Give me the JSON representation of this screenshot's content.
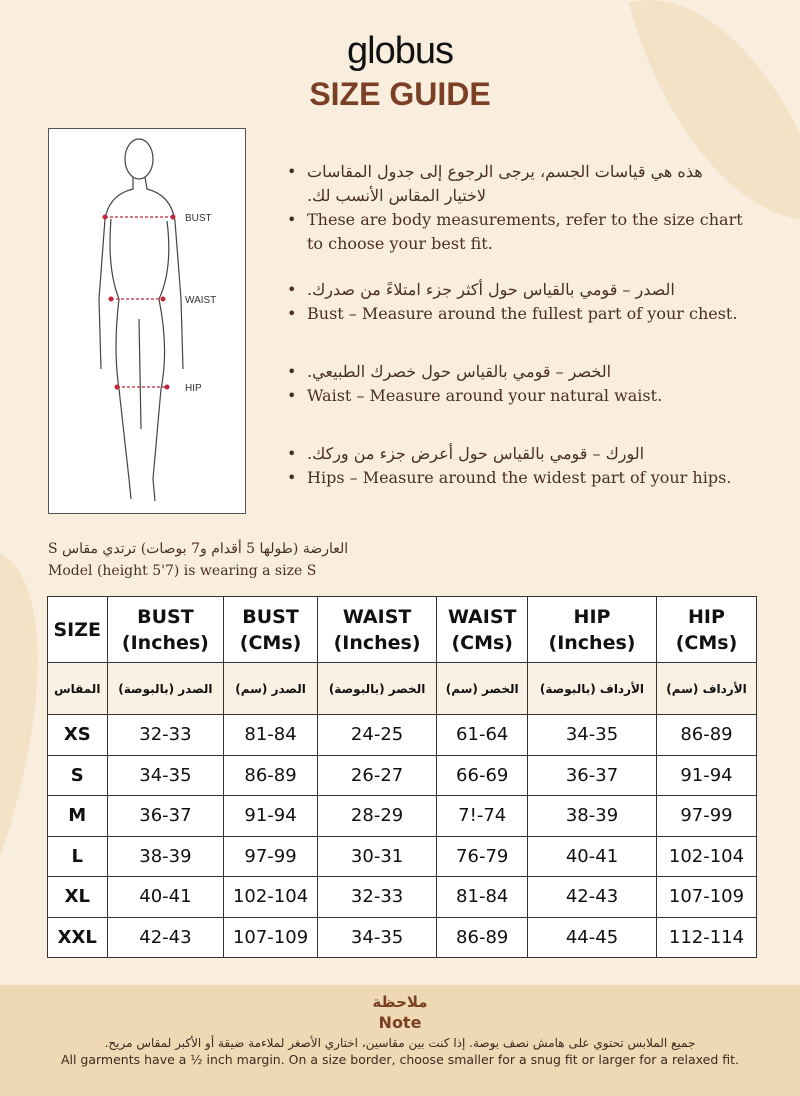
{
  "brand": "globus",
  "title": "SIZE GUIDE",
  "figure": {
    "labels": [
      "BUST",
      "WAIST",
      "HIP"
    ]
  },
  "bullets": [
    {
      "ar": "هذه هي قياسات الجسم، يرجى الرجوع إلى جدول المقاسات لاختيار المقاس الأنسب لك.",
      "en": "These are body measurements, refer to the size chart to choose your best fit."
    },
    {
      "ar": "الصدر – قومي بالقياس حول أكثر جزء امتلاءً من صدرك.",
      "en": "Bust – Measure around the fullest part of your chest."
    },
    {
      "ar": "الخصر – قومي بالقياس حول خصرك الطبيعي.",
      "en": "Waist – Measure around your natural waist."
    },
    {
      "ar": "الورك – قومي بالقياس حول أعرض جزء من وركك.",
      "en": "Hips – Measure around the widest part of your hips."
    }
  ],
  "model": {
    "ar": "العارضة (طولها 5 أقدام و7 بوصات) ترتدي مقاس S",
    "en": "Model (height 5'7) is wearing a size S"
  },
  "table": {
    "headers": [
      {
        "a": "SIZE",
        "b": ""
      },
      {
        "a": "BUST",
        "b": "(Inches)"
      },
      {
        "a": "BUST",
        "b": "(CMs)"
      },
      {
        "a": "WAIST",
        "b": "(Inches)"
      },
      {
        "a": "WAIST",
        "b": "(CMs)"
      },
      {
        "a": "HIP",
        "b": "(Inches)"
      },
      {
        "a": "HIP",
        "b": "(CMs)"
      }
    ],
    "ar_headers": [
      "المقاس",
      "الصدر (بالبوصة)",
      "الصدر (سم)",
      "الخصر (بالبوصة)",
      "الخصر (سم)",
      "الأرداف (بالبوصة)",
      "الأرداف (سم)"
    ],
    "rows": [
      [
        "XS",
        "32-33",
        "81-84",
        "24-25",
        "61-64",
        "34-35",
        "86-89"
      ],
      [
        "S",
        "34-35",
        "86-89",
        "26-27",
        "66-69",
        "36-37",
        "91-94"
      ],
      [
        "M",
        "36-37",
        "91-94",
        "28-29",
        "7!-74",
        "38-39",
        "97-99"
      ],
      [
        "L",
        "38-39",
        "97-99",
        "30-31",
        "76-79",
        "40-41",
        "102-104"
      ],
      [
        "XL",
        "40-41",
        "102-104",
        "32-33",
        "81-84",
        "42-43",
        "107-109"
      ],
      [
        "XXL",
        "42-43",
        "107-109",
        "34-35",
        "86-89",
        "44-45",
        "112-114"
      ]
    ]
  },
  "note": {
    "title_ar": "ملاحظة",
    "title_en": "Note",
    "ar": "جميع الملابس تحتوي على هامش نصف بوصة. إذا كنت بين مقاسين، اختاري الأصغر لملاءمة ضيقة أو الأكبر لمقاس مريح.",
    "en": "All garments have a ½ inch margin. On a size border, choose smaller for a snug fit or larger for a relaxed fit."
  },
  "colors": {
    "brown": "#7a3f25",
    "background": "#f9eedd",
    "note_band": "#efd9b4"
  }
}
